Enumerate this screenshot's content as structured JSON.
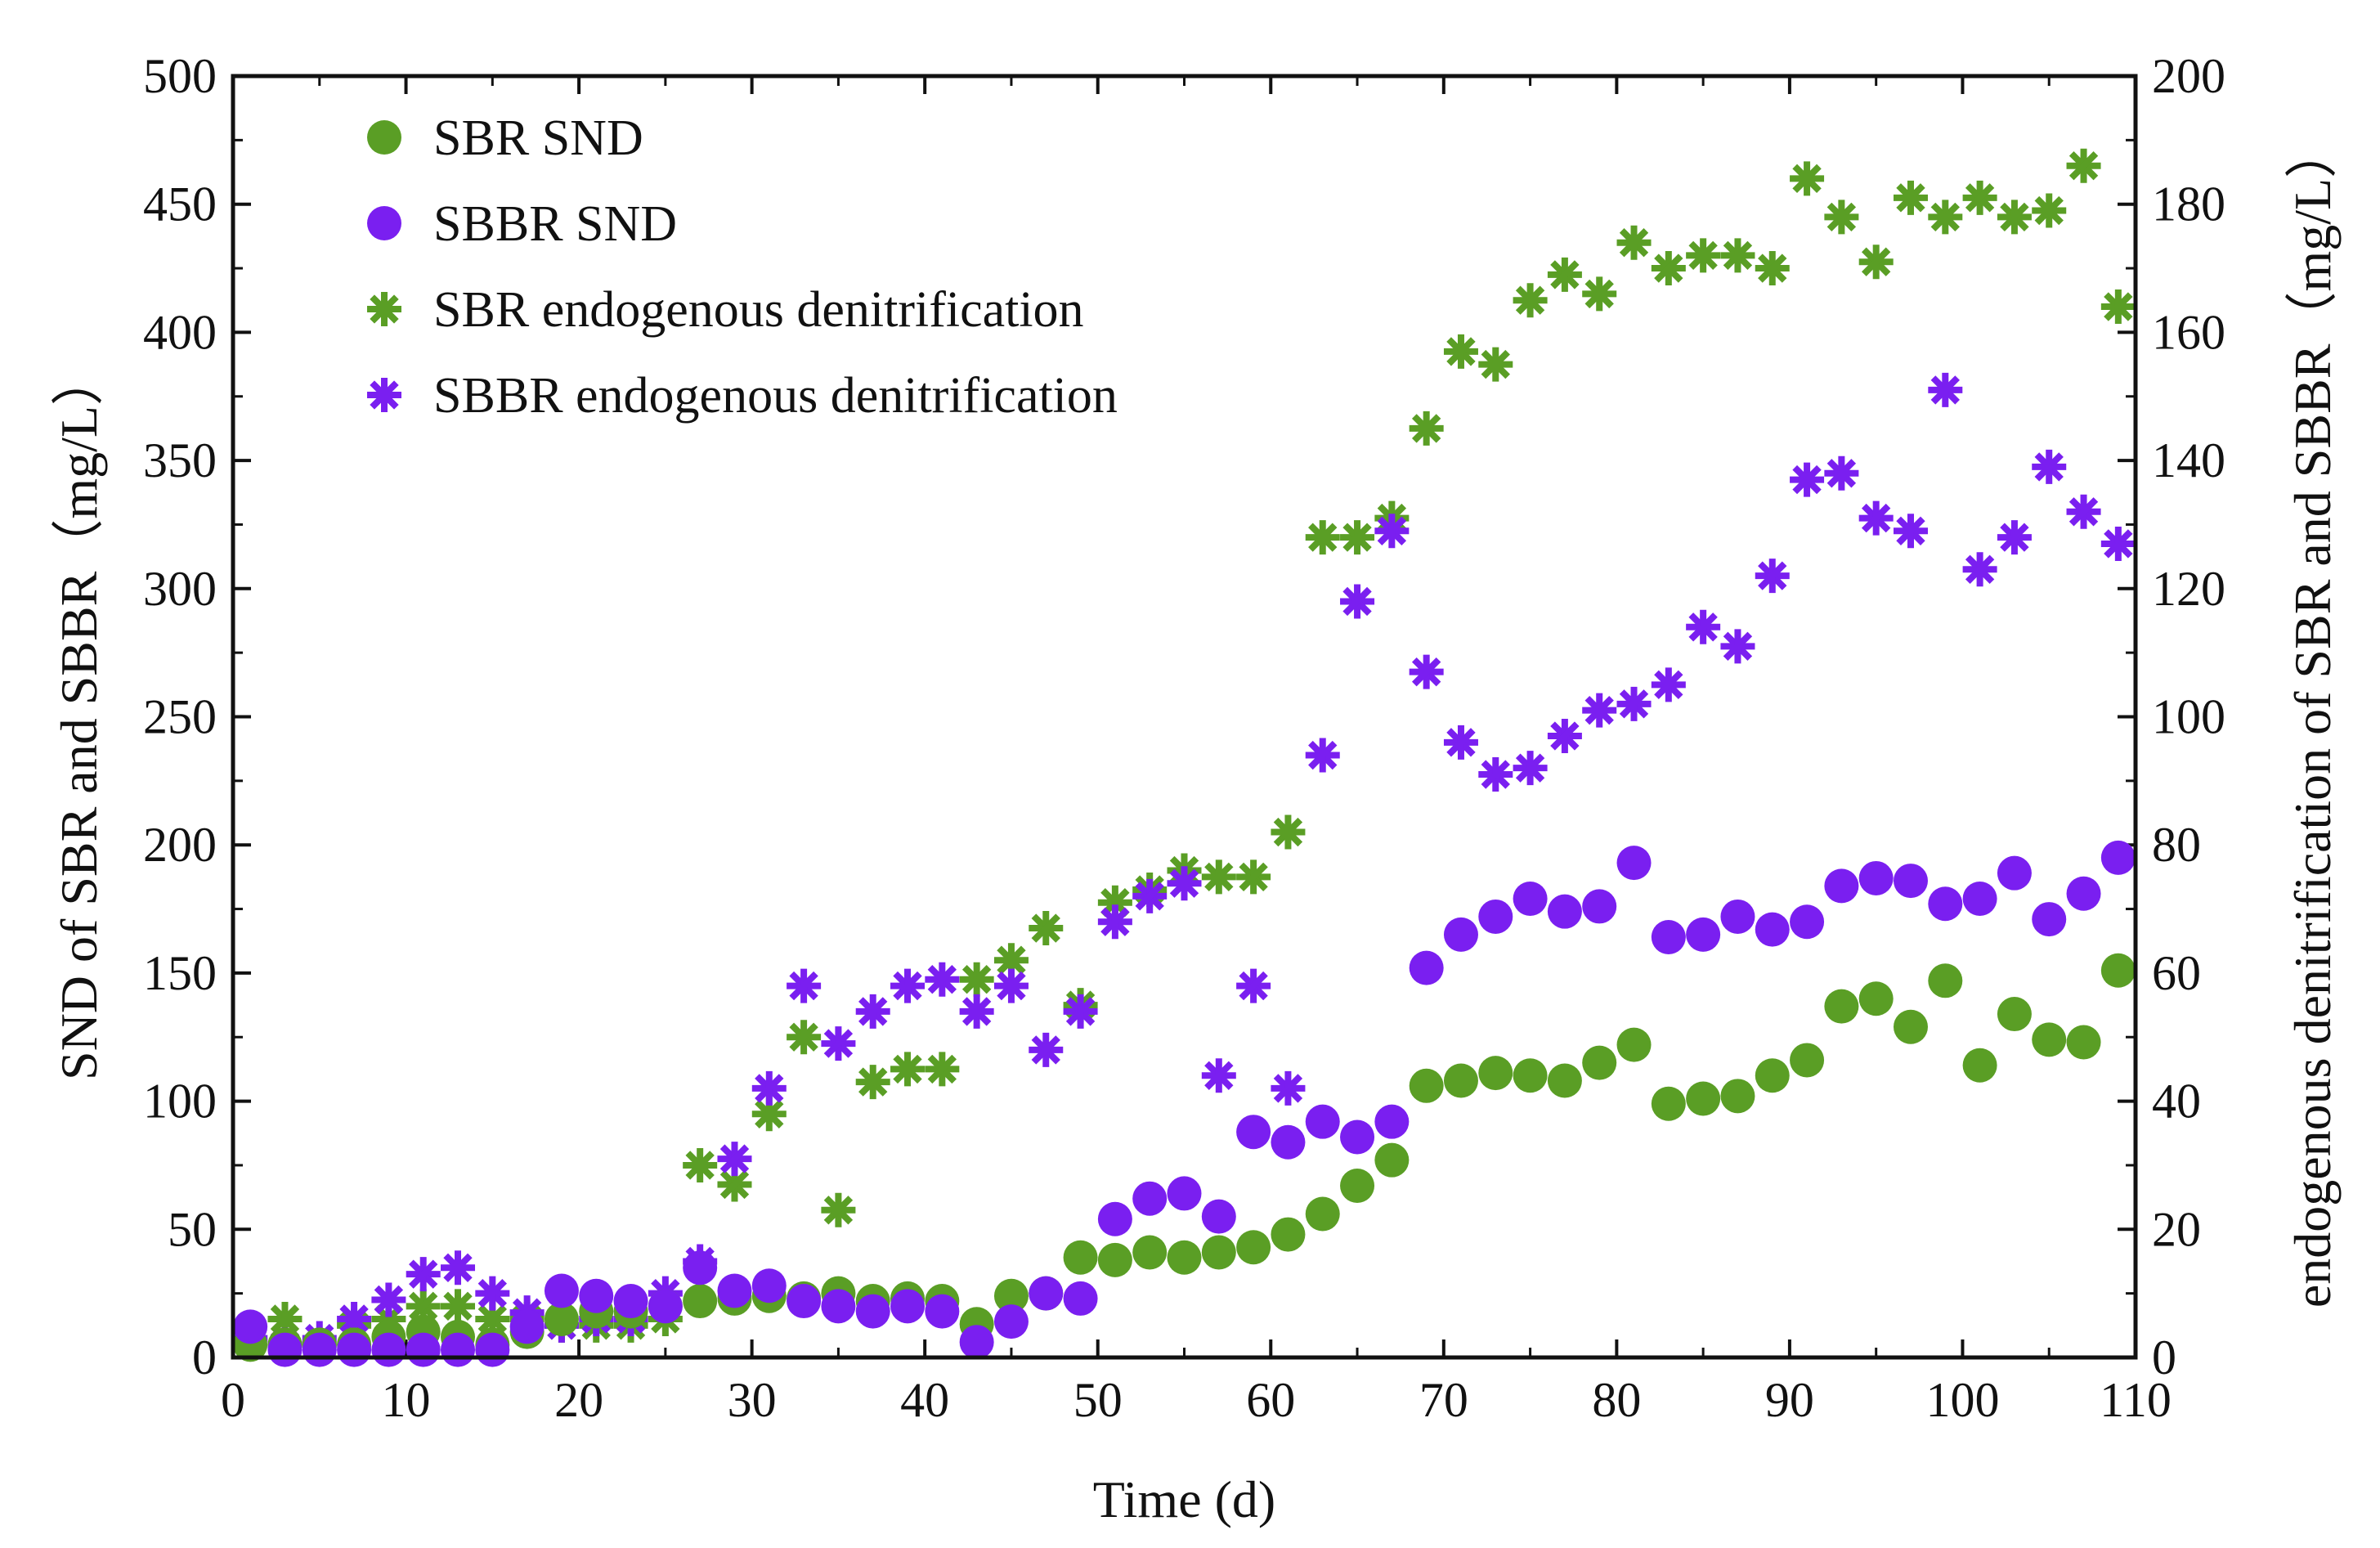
{
  "colors": {
    "sbr": "#5a9e25",
    "sbbr": "#7a1ff0",
    "axis": "#111111"
  },
  "chart_data": {
    "type": "scatter",
    "xlabel": "Time (d)",
    "ylabel_left": "SND of SBR and SBBR（mg/L）",
    "ylabel_right": "endogenous denitrification of SBR and SBBR（mg/L）",
    "xlim": [
      0,
      110
    ],
    "ylim_left": [
      0,
      500
    ],
    "ylim_right": [
      0,
      200
    ],
    "x_ticks": [
      "0",
      "10",
      "20",
      "30",
      "40",
      "50",
      "60",
      "70",
      "80",
      "90",
      "100",
      "110"
    ],
    "y_ticks_left": [
      "0",
      "50",
      "100",
      "150",
      "200",
      "250",
      "300",
      "350",
      "400",
      "450",
      "500"
    ],
    "y_ticks_right": [
      "0",
      "20",
      "40",
      "60",
      "80",
      "100",
      "120",
      "140",
      "160",
      "180",
      "200"
    ],
    "legend_position": "top-left",
    "series": [
      {
        "name": "SBR SND",
        "marker": "circle",
        "color": "#5a9e25",
        "axis": "left",
        "x": [
          1,
          3,
          5,
          7,
          9,
          11,
          13,
          15,
          17,
          19,
          21,
          23,
          25,
          27,
          29,
          31,
          33,
          35,
          37,
          39,
          41,
          43,
          45,
          47,
          49,
          51,
          53,
          55,
          57,
          59,
          61,
          63,
          65,
          67,
          69,
          71,
          73,
          75,
          77,
          79,
          81,
          83,
          85,
          87,
          89,
          91,
          93,
          95,
          97,
          99,
          101,
          103,
          105,
          107,
          109
        ],
        "y": [
          5,
          5,
          5,
          5,
          8,
          10,
          8,
          5,
          10,
          15,
          18,
          18,
          20,
          22,
          23,
          24,
          23,
          25,
          22,
          23,
          22,
          13,
          24,
          25,
          39,
          38,
          41,
          39,
          41,
          43,
          48,
          56,
          67,
          77,
          106,
          108,
          111,
          110,
          108,
          115,
          122,
          99,
          101,
          102,
          110,
          116,
          137,
          140,
          129,
          147,
          114,
          134,
          124,
          123,
          151
        ]
      },
      {
        "name": "SBBR SND",
        "marker": "circle",
        "color": "#7a1ff0",
        "axis": "left",
        "x": [
          1,
          3,
          5,
          7,
          9,
          11,
          13,
          15,
          17,
          19,
          21,
          23,
          25,
          27,
          29,
          31,
          33,
          35,
          37,
          39,
          41,
          43,
          45,
          47,
          49,
          51,
          53,
          55,
          57,
          59,
          61,
          63,
          65,
          67,
          69,
          71,
          73,
          75,
          77,
          79,
          81,
          83,
          85,
          87,
          89,
          91,
          93,
          95,
          97,
          99,
          101,
          103,
          105,
          107,
          109
        ],
        "y": [
          12,
          3,
          3,
          3,
          3,
          3,
          3,
          3,
          12,
          26,
          24,
          22,
          20,
          35,
          26,
          28,
          22,
          20,
          18,
          20,
          18,
          6,
          14,
          25,
          23,
          54,
          62,
          64,
          55,
          88,
          84,
          92,
          86,
          92,
          152,
          165,
          172,
          179,
          174,
          176,
          193,
          164,
          165,
          172,
          167,
          170,
          184,
          187,
          186,
          177,
          179,
          189,
          171,
          181,
          195
        ]
      },
      {
        "name": "SBR endogenous denitrification",
        "marker": "asterisk",
        "color": "#5a9e25",
        "axis": "right",
        "x": [
          1,
          3,
          5,
          7,
          9,
          11,
          13,
          15,
          17,
          19,
          21,
          23,
          25,
          27,
          29,
          31,
          33,
          35,
          37,
          39,
          41,
          43,
          45,
          47,
          49,
          51,
          53,
          55,
          57,
          59,
          61,
          63,
          65,
          67,
          69,
          71,
          73,
          75,
          77,
          79,
          81,
          83,
          85,
          87,
          89,
          91,
          93,
          95,
          97,
          99,
          101,
          103,
          105,
          107,
          109
        ],
        "y": [
          3,
          6,
          2,
          5,
          6,
          8,
          8,
          6,
          6,
          5,
          5,
          5,
          6,
          30,
          27,
          38,
          50,
          23,
          43,
          45,
          45,
          59,
          62,
          67,
          55,
          71,
          73,
          76,
          75,
          75,
          82,
          128,
          128,
          131,
          145,
          157,
          155,
          165,
          169,
          166,
          174,
          170,
          172,
          172,
          170,
          184,
          178,
          171,
          181,
          178,
          181,
          178,
          179,
          186,
          164
        ]
      },
      {
        "name": "SBBR endogenous denitrification",
        "marker": "asterisk",
        "color": "#7a1ff0",
        "axis": "right",
        "x": [
          1,
          3,
          5,
          7,
          9,
          11,
          13,
          15,
          17,
          19,
          21,
          23,
          25,
          27,
          29,
          31,
          33,
          35,
          37,
          39,
          41,
          43,
          45,
          47,
          49,
          51,
          53,
          55,
          57,
          59,
          61,
          63,
          65,
          67,
          69,
          71,
          73,
          75,
          77,
          79,
          81,
          83,
          85,
          87,
          89,
          91,
          93,
          95,
          97,
          99,
          101,
          103,
          105,
          107,
          109
        ],
        "y": [
          3,
          2,
          3,
          6,
          9,
          13,
          14,
          10,
          7,
          5,
          6,
          6,
          10,
          15,
          31,
          42,
          58,
          49,
          54,
          58,
          59,
          54,
          58,
          48,
          54,
          68,
          72,
          74,
          44,
          58,
          42,
          94,
          118,
          129,
          107,
          96,
          91,
          92,
          97,
          101,
          102,
          105,
          114,
          111,
          122,
          137,
          138,
          131,
          129,
          151,
          123,
          128,
          139,
          132,
          127
        ]
      }
    ]
  }
}
